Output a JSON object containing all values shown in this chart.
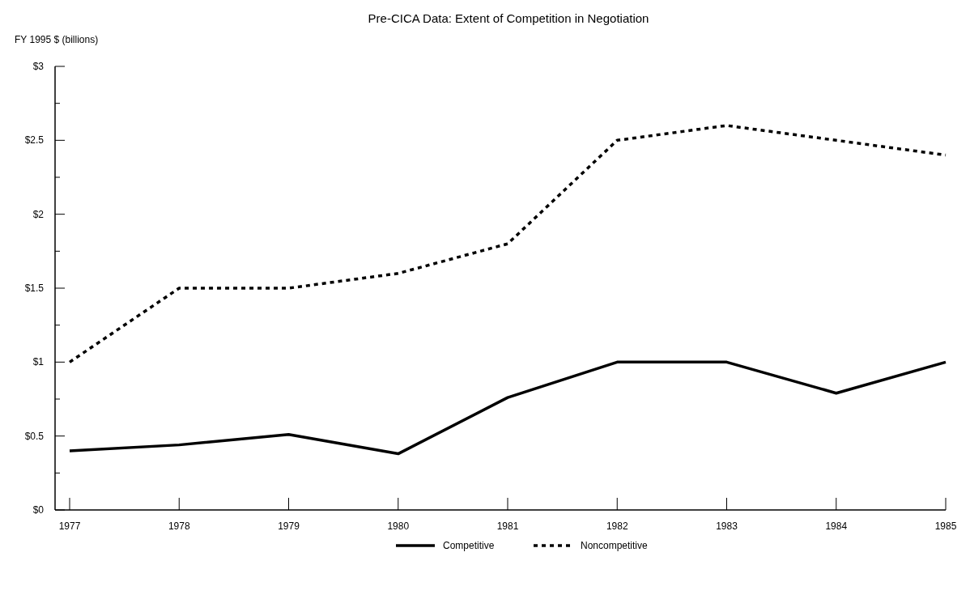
{
  "chart_data": {
    "type": "line",
    "title": "Pre-CICA Data: Extent of Competition in Negotiation",
    "ylabel": "FY 1995 $ (billions)",
    "categories": [
      "1977",
      "1978",
      "1979",
      "1980",
      "1981",
      "1982",
      "1983",
      "1984",
      "1985"
    ],
    "series": [
      {
        "name": "Competitive",
        "color": "#000000",
        "line_style": "solid",
        "values": [
          0.4,
          0.44,
          0.51,
          0.38,
          0.76,
          1.0,
          1.0,
          0.79,
          1.0
        ]
      },
      {
        "name": "Noncompetitive",
        "color": "#000000",
        "line_style": "dotted",
        "values": [
          1.0,
          1.5,
          1.5,
          1.6,
          1.8,
          2.5,
          2.6,
          2.5,
          2.4
        ]
      }
    ],
    "ylim": [
      0,
      3
    ],
    "yticks": [
      {
        "value": 0,
        "label": "$0"
      },
      {
        "value": 0.25,
        "label": null
      },
      {
        "value": 0.5,
        "label": "$0.5"
      },
      {
        "value": 0.75,
        "label": null
      },
      {
        "value": 1,
        "label": "$1"
      },
      {
        "value": 1.25,
        "label": null
      },
      {
        "value": 1.5,
        "label": "$1.5"
      },
      {
        "value": 1.75,
        "label": null
      },
      {
        "value": 2,
        "label": "$2"
      },
      {
        "value": 2.25,
        "label": null
      },
      {
        "value": 2.5,
        "label": "$2.5"
      },
      {
        "value": 2.75,
        "label": null
      },
      {
        "value": 3,
        "label": "$3"
      }
    ],
    "legend": "bottom",
    "grid": false
  }
}
